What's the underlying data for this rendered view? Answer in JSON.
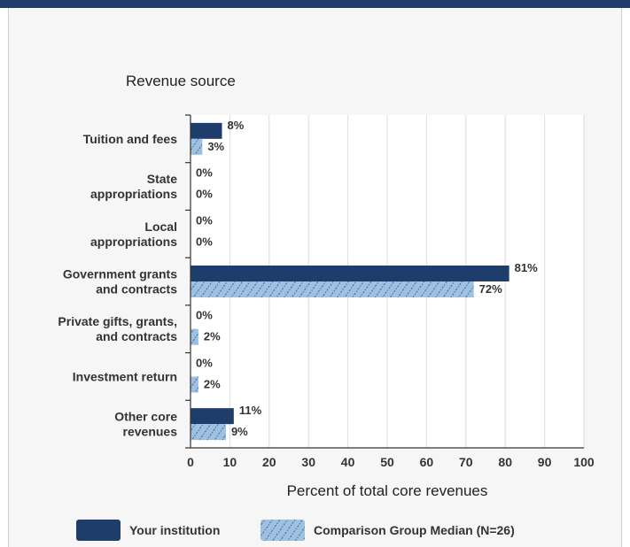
{
  "colors": {
    "institution": "#1f3d6b",
    "comparison": "#9fc0e0",
    "comparison_hatch": "#3d6f99"
  },
  "chart_data": {
    "type": "bar",
    "orientation": "horizontal",
    "title": "Revenue source",
    "xlabel": "Percent of total core revenues",
    "xlim": [
      0,
      100
    ],
    "xticks": [
      0,
      10,
      20,
      30,
      40,
      50,
      60,
      70,
      80,
      90,
      100
    ],
    "grid": true,
    "legend_position": "bottom",
    "categories": [
      [
        "Tuition and fees"
      ],
      [
        "State",
        "appropriations"
      ],
      [
        "Local",
        "appropriations"
      ],
      [
        "Government grants",
        "and contracts"
      ],
      [
        "Private gifts, grants,",
        "and contracts"
      ],
      [
        "Investment return"
      ],
      [
        "Other core",
        "revenues"
      ]
    ],
    "series": [
      {
        "name": "Your institution",
        "values": [
          8,
          0,
          0,
          81,
          0,
          0,
          11
        ],
        "labels": [
          "8%",
          "0%",
          "0%",
          "81%",
          "0%",
          "0%",
          "11%"
        ]
      },
      {
        "name": "Comparison Group Median (N=26)",
        "values": [
          3,
          0,
          0,
          72,
          2,
          2,
          9
        ],
        "labels": [
          "3%",
          "0%",
          "0%",
          "72%",
          "2%",
          "2%",
          "9%"
        ]
      }
    ]
  }
}
